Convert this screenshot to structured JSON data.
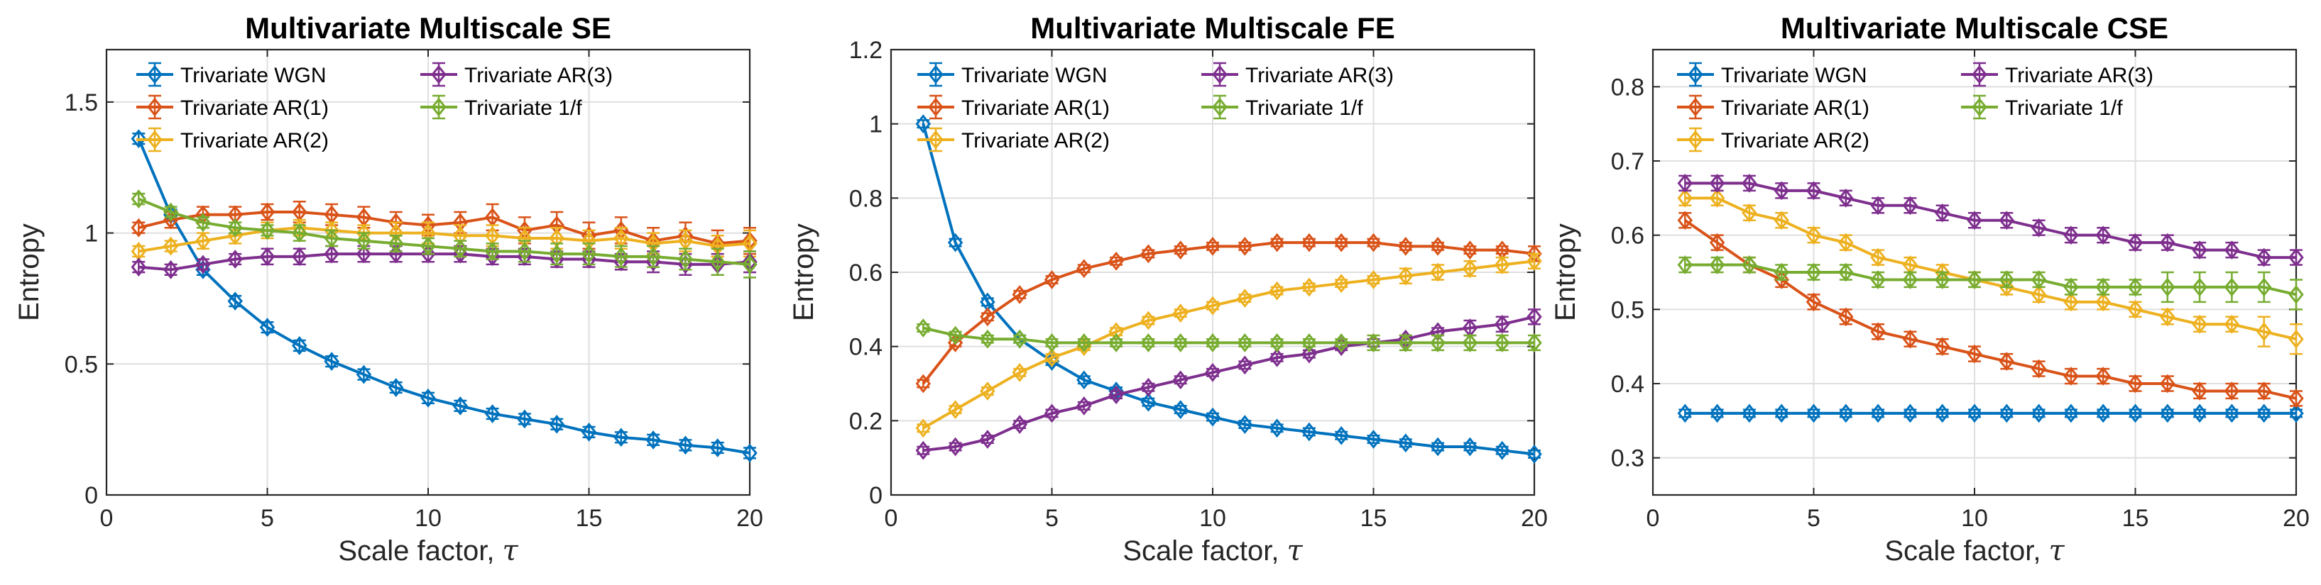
{
  "colors": {
    "wgn": "#0072BD",
    "ar1": "#D95319",
    "ar2": "#EDB120",
    "ar3": "#7E2F8E",
    "oof": "#77AC30"
  },
  "chart_data": [
    {
      "type": "line",
      "title": "Multivariate Multiscale SE",
      "xlabel": "Scale factor, ",
      "xlabel_symbol": "τ",
      "ylabel": "Entropy",
      "xlim": [
        0,
        20
      ],
      "ylim": [
        0,
        1.7
      ],
      "xticks": [
        0,
        5,
        10,
        15,
        20
      ],
      "xtick_labels": [
        "0",
        "5",
        "10",
        "15",
        "20"
      ],
      "yticks": [
        0,
        0.5,
        1,
        1.5
      ],
      "ytick_labels": [
        "0",
        "0.5",
        "1",
        "1.5"
      ],
      "grid": true,
      "legend_position": "top",
      "x": [
        1,
        2,
        3,
        4,
        5,
        6,
        7,
        8,
        9,
        10,
        11,
        12,
        13,
        14,
        15,
        16,
        17,
        18,
        19,
        20
      ],
      "series": [
        {
          "name": "Trivariate WGN",
          "color_key": "wgn",
          "values": [
            1.36,
            1.07,
            0.86,
            0.74,
            0.64,
            0.57,
            0.51,
            0.46,
            0.41,
            0.37,
            0.34,
            0.31,
            0.29,
            0.27,
            0.24,
            0.22,
            0.21,
            0.19,
            0.18,
            0.16
          ],
          "errors": [
            0.02,
            0.02,
            0.02,
            0.02,
            0.02,
            0.02,
            0.02,
            0.02,
            0.02,
            0.02,
            0.02,
            0.02,
            0.02,
            0.02,
            0.02,
            0.02,
            0.02,
            0.02,
            0.02,
            0.02
          ]
        },
        {
          "name": "Trivariate AR(1)",
          "color_key": "ar1",
          "values": [
            1.02,
            1.05,
            1.07,
            1.07,
            1.08,
            1.08,
            1.07,
            1.06,
            1.04,
            1.03,
            1.04,
            1.06,
            1.01,
            1.03,
            0.99,
            1.01,
            0.97,
            0.99,
            0.96,
            0.97
          ],
          "errors": [
            0.02,
            0.03,
            0.03,
            0.03,
            0.03,
            0.04,
            0.04,
            0.04,
            0.04,
            0.04,
            0.04,
            0.05,
            0.05,
            0.05,
            0.05,
            0.05,
            0.05,
            0.05,
            0.05,
            0.05
          ]
        },
        {
          "name": "Trivariate AR(2)",
          "color_key": "ar2",
          "values": [
            0.93,
            0.95,
            0.97,
            0.99,
            1.01,
            1.02,
            1.01,
            1.0,
            1.0,
            1.0,
            0.99,
            0.99,
            0.98,
            0.98,
            0.97,
            0.98,
            0.96,
            0.97,
            0.95,
            0.96
          ],
          "errors": [
            0.02,
            0.02,
            0.03,
            0.03,
            0.03,
            0.03,
            0.03,
            0.03,
            0.04,
            0.04,
            0.04,
            0.04,
            0.04,
            0.04,
            0.04,
            0.04,
            0.04,
            0.04,
            0.04,
            0.05
          ]
        },
        {
          "name": "Trivariate AR(3)",
          "color_key": "ar3",
          "values": [
            0.87,
            0.86,
            0.88,
            0.9,
            0.91,
            0.91,
            0.92,
            0.92,
            0.92,
            0.92,
            0.92,
            0.91,
            0.91,
            0.9,
            0.9,
            0.89,
            0.89,
            0.88,
            0.88,
            0.89
          ],
          "errors": [
            0.02,
            0.02,
            0.02,
            0.02,
            0.03,
            0.03,
            0.03,
            0.03,
            0.03,
            0.03,
            0.03,
            0.03,
            0.03,
            0.03,
            0.03,
            0.03,
            0.04,
            0.04,
            0.04,
            0.04
          ]
        },
        {
          "name": "Trivariate 1/f",
          "color_key": "oof",
          "values": [
            1.13,
            1.08,
            1.04,
            1.02,
            1.01,
            1.0,
            0.98,
            0.97,
            0.96,
            0.95,
            0.94,
            0.93,
            0.93,
            0.92,
            0.92,
            0.91,
            0.91,
            0.9,
            0.89,
            0.88
          ],
          "errors": [
            0.02,
            0.02,
            0.02,
            0.02,
            0.02,
            0.03,
            0.03,
            0.03,
            0.03,
            0.03,
            0.03,
            0.03,
            0.04,
            0.04,
            0.04,
            0.04,
            0.04,
            0.04,
            0.05,
            0.05
          ]
        }
      ]
    },
    {
      "type": "line",
      "title": "Multivariate Multiscale FE",
      "xlabel": "Scale factor, ",
      "xlabel_symbol": "τ",
      "ylabel": "Entropy",
      "xlim": [
        0,
        20
      ],
      "ylim": [
        0,
        1.2
      ],
      "xticks": [
        0,
        5,
        10,
        15,
        20
      ],
      "xtick_labels": [
        "0",
        "5",
        "10",
        "15",
        "20"
      ],
      "yticks": [
        0,
        0.2,
        0.4,
        0.6,
        0.8,
        1,
        1.2
      ],
      "ytick_labels": [
        "0",
        "0.2",
        "0.4",
        "0.6",
        "0.8",
        "1",
        "1.2"
      ],
      "grid": true,
      "legend_position": "top-right",
      "x": [
        1,
        2,
        3,
        4,
        5,
        6,
        7,
        8,
        9,
        10,
        11,
        12,
        13,
        14,
        15,
        16,
        17,
        18,
        19,
        20
      ],
      "series": [
        {
          "name": "Trivariate WGN",
          "color_key": "wgn",
          "values": [
            1.0,
            0.68,
            0.52,
            0.42,
            0.36,
            0.31,
            0.28,
            0.25,
            0.23,
            0.21,
            0.19,
            0.18,
            0.17,
            0.16,
            0.15,
            0.14,
            0.13,
            0.13,
            0.12,
            0.11
          ],
          "errors": [
            0.01,
            0.01,
            0.01,
            0.01,
            0.01,
            0.01,
            0.01,
            0.01,
            0.01,
            0.01,
            0.01,
            0.01,
            0.01,
            0.01,
            0.01,
            0.01,
            0.01,
            0.01,
            0.01,
            0.01
          ]
        },
        {
          "name": "Trivariate AR(1)",
          "color_key": "ar1",
          "values": [
            0.3,
            0.41,
            0.48,
            0.54,
            0.58,
            0.61,
            0.63,
            0.65,
            0.66,
            0.67,
            0.67,
            0.68,
            0.68,
            0.68,
            0.68,
            0.67,
            0.67,
            0.66,
            0.66,
            0.65
          ],
          "errors": [
            0.01,
            0.01,
            0.01,
            0.01,
            0.01,
            0.01,
            0.01,
            0.01,
            0.01,
            0.01,
            0.01,
            0.01,
            0.01,
            0.01,
            0.01,
            0.01,
            0.01,
            0.01,
            0.01,
            0.02
          ]
        },
        {
          "name": "Trivariate AR(2)",
          "color_key": "ar2",
          "values": [
            0.18,
            0.23,
            0.28,
            0.33,
            0.37,
            0.4,
            0.44,
            0.47,
            0.49,
            0.51,
            0.53,
            0.55,
            0.56,
            0.57,
            0.58,
            0.59,
            0.6,
            0.61,
            0.62,
            0.63
          ],
          "errors": [
            0.01,
            0.01,
            0.01,
            0.01,
            0.01,
            0.01,
            0.01,
            0.01,
            0.01,
            0.01,
            0.01,
            0.01,
            0.01,
            0.01,
            0.01,
            0.02,
            0.02,
            0.02,
            0.02,
            0.02
          ]
        },
        {
          "name": "Trivariate AR(3)",
          "color_key": "ar3",
          "values": [
            0.12,
            0.13,
            0.15,
            0.19,
            0.22,
            0.24,
            0.27,
            0.29,
            0.31,
            0.33,
            0.35,
            0.37,
            0.38,
            0.4,
            0.41,
            0.42,
            0.44,
            0.45,
            0.46,
            0.48
          ],
          "errors": [
            0.01,
            0.01,
            0.01,
            0.01,
            0.01,
            0.01,
            0.01,
            0.01,
            0.01,
            0.01,
            0.01,
            0.01,
            0.01,
            0.01,
            0.01,
            0.01,
            0.01,
            0.02,
            0.02,
            0.02
          ]
        },
        {
          "name": "Trivariate 1/f",
          "color_key": "oof",
          "values": [
            0.45,
            0.43,
            0.42,
            0.42,
            0.41,
            0.41,
            0.41,
            0.41,
            0.41,
            0.41,
            0.41,
            0.41,
            0.41,
            0.41,
            0.41,
            0.41,
            0.41,
            0.41,
            0.41,
            0.41
          ],
          "errors": [
            0.01,
            0.01,
            0.01,
            0.01,
            0.01,
            0.01,
            0.01,
            0.01,
            0.01,
            0.01,
            0.01,
            0.01,
            0.01,
            0.01,
            0.02,
            0.02,
            0.02,
            0.02,
            0.02,
            0.02
          ]
        }
      ]
    },
    {
      "type": "line",
      "title": "Multivariate Multiscale CSE",
      "xlabel": "Scale factor, ",
      "xlabel_symbol": "τ",
      "ylabel": "Entropy",
      "xlim": [
        0,
        20
      ],
      "ylim": [
        0.25,
        0.85
      ],
      "xticks": [
        0,
        5,
        10,
        15,
        20
      ],
      "xtick_labels": [
        "0",
        "5",
        "10",
        "15",
        "20"
      ],
      "yticks": [
        0.3,
        0.4,
        0.5,
        0.6,
        0.7,
        0.8
      ],
      "ytick_labels": [
        "0.3",
        "0.4",
        "0.5",
        "0.6",
        "0.7",
        "0.8"
      ],
      "grid": true,
      "legend_position": "top-right",
      "x": [
        1,
        2,
        3,
        4,
        5,
        6,
        7,
        8,
        9,
        10,
        11,
        12,
        13,
        14,
        15,
        16,
        17,
        18,
        19,
        20
      ],
      "series": [
        {
          "name": "Trivariate WGN",
          "color_key": "wgn",
          "values": [
            0.36,
            0.36,
            0.36,
            0.36,
            0.36,
            0.36,
            0.36,
            0.36,
            0.36,
            0.36,
            0.36,
            0.36,
            0.36,
            0.36,
            0.36,
            0.36,
            0.36,
            0.36,
            0.36,
            0.36
          ],
          "errors": [
            0.005,
            0.005,
            0.005,
            0.005,
            0.005,
            0.005,
            0.005,
            0.005,
            0.005,
            0.005,
            0.005,
            0.005,
            0.005,
            0.005,
            0.005,
            0.005,
            0.005,
            0.005,
            0.005,
            0.005
          ]
        },
        {
          "name": "Trivariate AR(1)",
          "color_key": "ar1",
          "values": [
            0.62,
            0.59,
            0.56,
            0.54,
            0.51,
            0.49,
            0.47,
            0.46,
            0.45,
            0.44,
            0.43,
            0.42,
            0.41,
            0.41,
            0.4,
            0.4,
            0.39,
            0.39,
            0.39,
            0.38
          ],
          "errors": [
            0.01,
            0.01,
            0.01,
            0.01,
            0.01,
            0.01,
            0.01,
            0.01,
            0.01,
            0.01,
            0.01,
            0.01,
            0.01,
            0.01,
            0.01,
            0.01,
            0.01,
            0.01,
            0.01,
            0.01
          ]
        },
        {
          "name": "Trivariate AR(2)",
          "color_key": "ar2",
          "values": [
            0.65,
            0.65,
            0.63,
            0.62,
            0.6,
            0.59,
            0.57,
            0.56,
            0.55,
            0.54,
            0.53,
            0.52,
            0.51,
            0.51,
            0.5,
            0.49,
            0.48,
            0.48,
            0.47,
            0.46
          ],
          "errors": [
            0.01,
            0.01,
            0.01,
            0.01,
            0.01,
            0.01,
            0.01,
            0.01,
            0.01,
            0.01,
            0.01,
            0.01,
            0.01,
            0.01,
            0.01,
            0.01,
            0.01,
            0.01,
            0.02,
            0.02
          ]
        },
        {
          "name": "Trivariate AR(3)",
          "color_key": "ar3",
          "values": [
            0.67,
            0.67,
            0.67,
            0.66,
            0.66,
            0.65,
            0.64,
            0.64,
            0.63,
            0.62,
            0.62,
            0.61,
            0.6,
            0.6,
            0.59,
            0.59,
            0.58,
            0.58,
            0.57,
            0.57
          ],
          "errors": [
            0.01,
            0.01,
            0.01,
            0.01,
            0.01,
            0.01,
            0.01,
            0.01,
            0.01,
            0.01,
            0.01,
            0.01,
            0.01,
            0.01,
            0.01,
            0.01,
            0.01,
            0.01,
            0.01,
            0.01
          ]
        },
        {
          "name": "Trivariate 1/f",
          "color_key": "oof",
          "values": [
            0.56,
            0.56,
            0.56,
            0.55,
            0.55,
            0.55,
            0.54,
            0.54,
            0.54,
            0.54,
            0.54,
            0.54,
            0.53,
            0.53,
            0.53,
            0.53,
            0.53,
            0.53,
            0.53,
            0.52
          ],
          "errors": [
            0.01,
            0.01,
            0.01,
            0.01,
            0.01,
            0.01,
            0.01,
            0.01,
            0.01,
            0.01,
            0.01,
            0.01,
            0.01,
            0.01,
            0.01,
            0.02,
            0.02,
            0.02,
            0.02,
            0.02
          ]
        }
      ]
    }
  ]
}
